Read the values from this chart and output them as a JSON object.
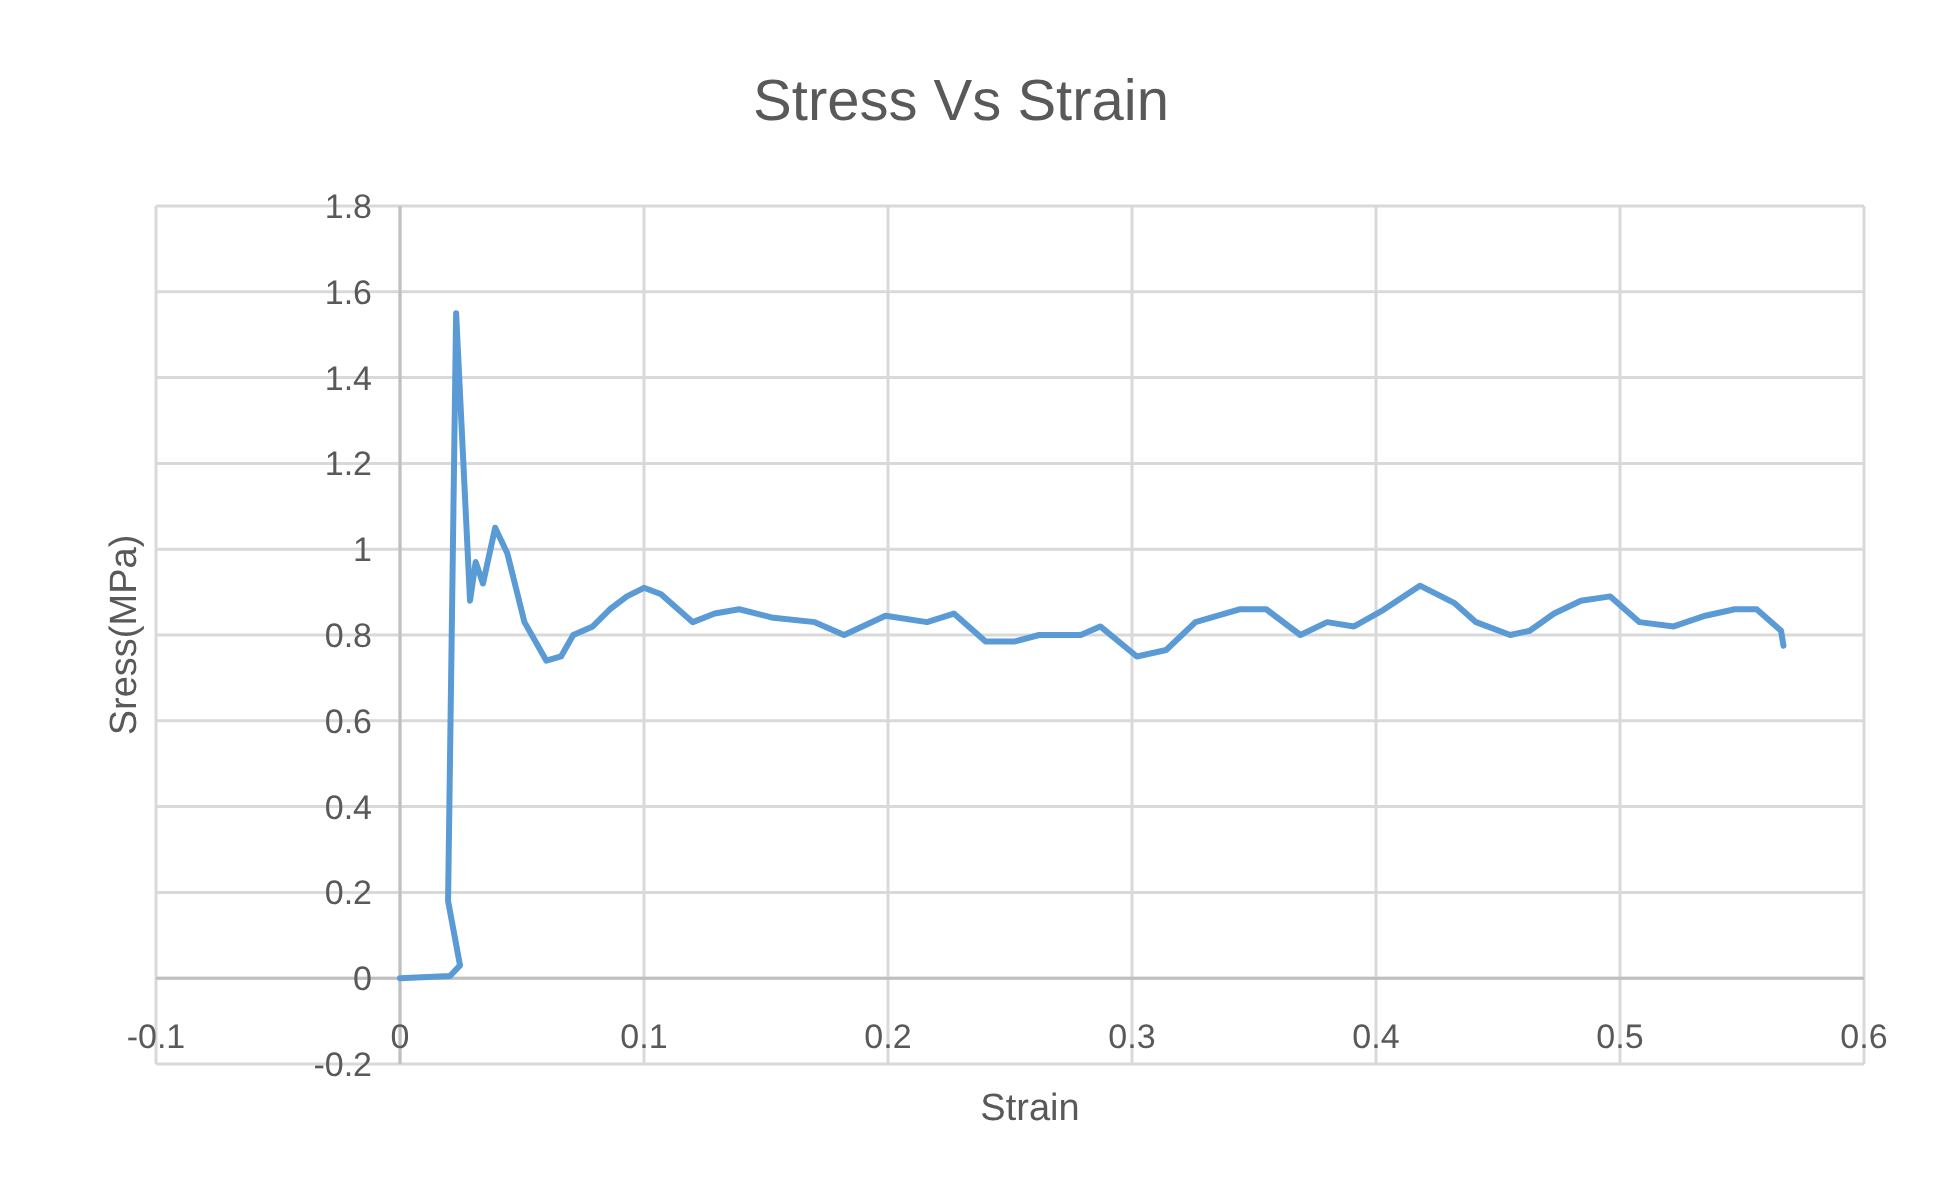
{
  "chart_data": {
    "type": "line",
    "title": "Stress Vs Strain",
    "xlabel": "Strain",
    "ylabel": "Sress(MPa)",
    "xlim": [
      -0.1,
      0.6
    ],
    "ylim": [
      -0.2,
      1.8
    ],
    "xticks": [
      -0.1,
      0,
      0.1,
      0.2,
      0.3,
      0.4,
      0.5,
      0.6
    ],
    "yticks": [
      -0.2,
      0,
      0.2,
      0.4,
      0.6,
      0.8,
      1,
      1.2,
      1.4,
      1.6,
      1.8
    ],
    "grid": true,
    "marker": "none",
    "line_style": "solid",
    "series": [
      {
        "color": "#5b9bd5",
        "x": [
          0,
          0.0205,
          0.0246,
          0.0197,
          0.023,
          0.0287,
          0.031,
          0.034,
          0.039,
          0.044,
          0.051,
          0.06,
          0.066,
          0.071,
          0.079,
          0.086,
          0.093,
          0.1,
          0.107,
          0.12,
          0.129,
          0.139,
          0.153,
          0.17,
          0.182,
          0.199,
          0.216,
          0.227,
          0.24,
          0.252,
          0.262,
          0.279,
          0.287,
          0.302,
          0.314,
          0.326,
          0.344,
          0.355,
          0.369,
          0.38,
          0.391,
          0.402,
          0.418,
          0.432,
          0.441,
          0.455,
          0.463,
          0.473,
          0.484,
          0.496,
          0.508,
          0.522,
          0.535,
          0.547,
          0.556,
          0.566,
          0.567
        ],
        "values": [
          0,
          0.005,
          0.03,
          0.18,
          1.55,
          0.88,
          0.97,
          0.92,
          1.05,
          0.99,
          0.83,
          0.74,
          0.75,
          0.8,
          0.82,
          0.86,
          0.89,
          0.91,
          0.895,
          0.83,
          0.85,
          0.86,
          0.84,
          0.83,
          0.8,
          0.845,
          0.83,
          0.85,
          0.785,
          0.785,
          0.8,
          0.8,
          0.82,
          0.75,
          0.765,
          0.83,
          0.86,
          0.86,
          0.8,
          0.83,
          0.82,
          0.855,
          0.915,
          0.875,
          0.83,
          0.8,
          0.81,
          0.85,
          0.88,
          0.89,
          0.83,
          0.82,
          0.845,
          0.86,
          0.86,
          0.81,
          0.775
        ]
      }
    ]
  }
}
